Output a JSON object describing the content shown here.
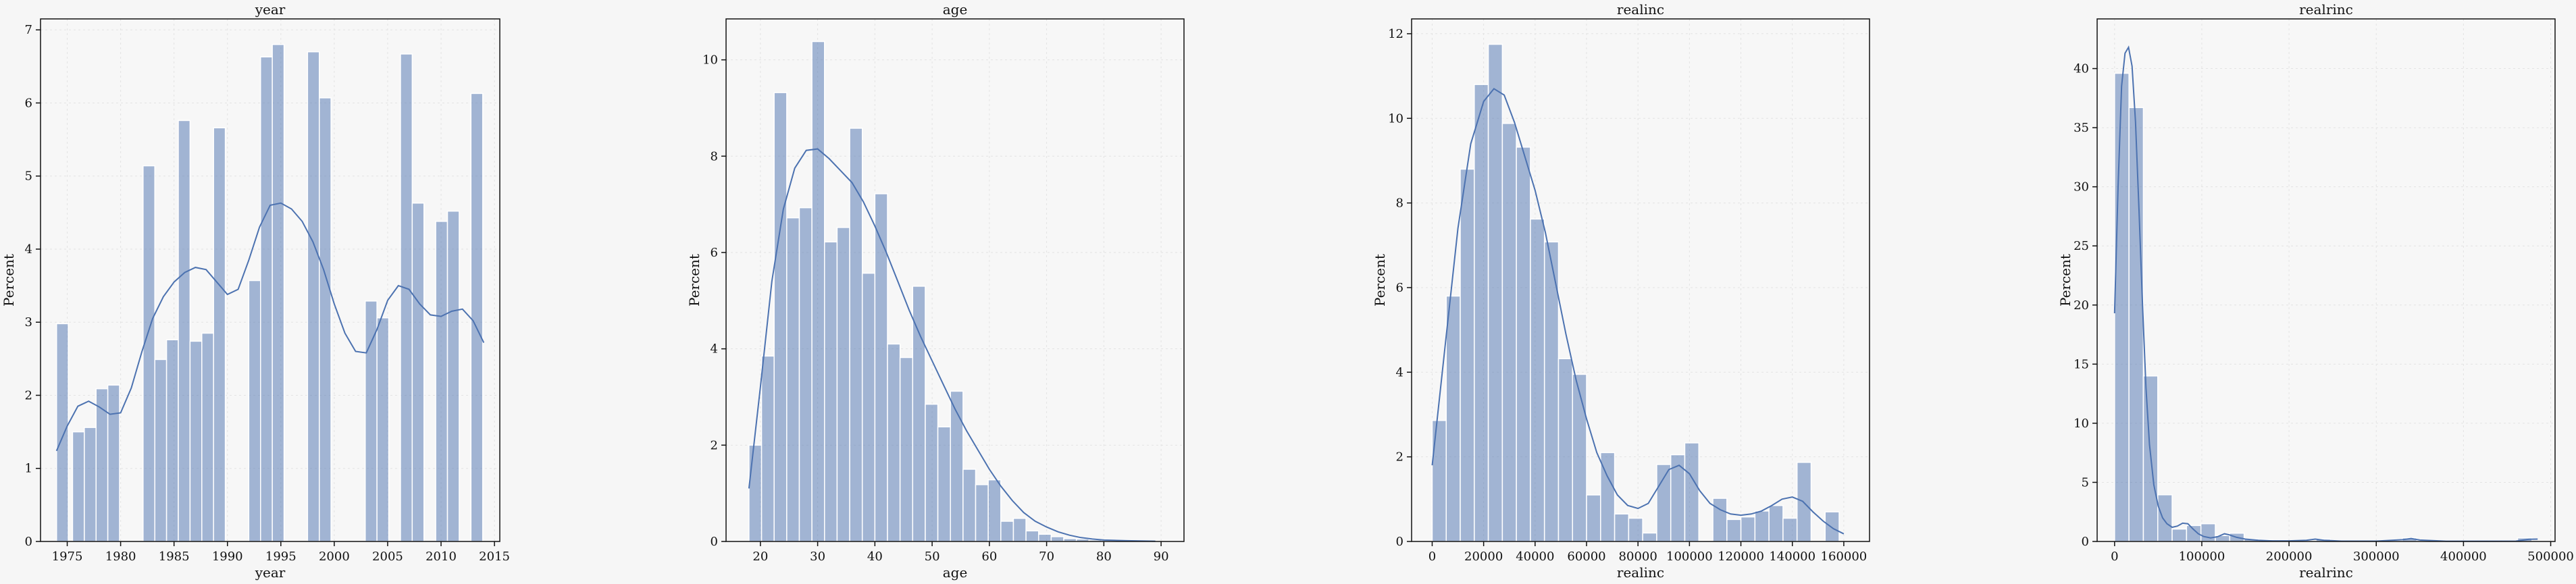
{
  "chart_data": [
    {
      "type": "bar",
      "title": "year",
      "xlabel": "year",
      "ylabel": "Percent",
      "xlim": [
        1972.5,
        2015.5
      ],
      "ylim": [
        0,
        7.15
      ],
      "xticks": [
        1975,
        1980,
        1985,
        1990,
        1995,
        2000,
        2005,
        2010,
        2015
      ],
      "yticks": [
        0,
        1,
        2,
        3,
        4,
        5,
        6,
        7
      ],
      "grid": true,
      "bar_color": "#4c72b0",
      "bars": [
        {
          "x0": 1974.0,
          "x1": 1975.1,
          "value": 2.98
        },
        {
          "x0": 1975.5,
          "x1": 1976.6,
          "value": 1.5
        },
        {
          "x0": 1976.6,
          "x1": 1977.7,
          "value": 1.56
        },
        {
          "x0": 1977.7,
          "x1": 1978.8,
          "value": 2.09
        },
        {
          "x0": 1978.8,
          "x1": 1979.9,
          "value": 2.14
        },
        {
          "x0": 1982.1,
          "x1": 1983.2,
          "value": 5.14
        },
        {
          "x0": 1983.2,
          "x1": 1984.3,
          "value": 2.49
        },
        {
          "x0": 1984.3,
          "x1": 1985.4,
          "value": 2.76
        },
        {
          "x0": 1985.4,
          "x1": 1986.5,
          "value": 5.76
        },
        {
          "x0": 1986.5,
          "x1": 1987.6,
          "value": 2.74
        },
        {
          "x0": 1987.6,
          "x1": 1988.7,
          "value": 2.85
        },
        {
          "x0": 1988.7,
          "x1": 1989.8,
          "value": 5.66
        },
        {
          "x0": 1992.0,
          "x1": 1993.1,
          "value": 3.57
        },
        {
          "x0": 1993.1,
          "x1": 1994.2,
          "value": 6.63
        },
        {
          "x0": 1994.2,
          "x1": 1995.3,
          "value": 6.8
        },
        {
          "x0": 1997.5,
          "x1": 1998.6,
          "value": 6.7
        },
        {
          "x0": 1998.6,
          "x1": 1999.7,
          "value": 6.07
        },
        {
          "x0": 2002.9,
          "x1": 2004.0,
          "value": 3.29
        },
        {
          "x0": 2004.0,
          "x1": 2005.1,
          "value": 3.06
        },
        {
          "x0": 2006.2,
          "x1": 2007.3,
          "value": 6.67
        },
        {
          "x0": 2007.3,
          "x1": 2008.4,
          "value": 4.63
        },
        {
          "x0": 2009.5,
          "x1": 2010.6,
          "value": 4.38
        },
        {
          "x0": 2010.6,
          "x1": 2011.7,
          "value": 4.52
        },
        {
          "x0": 2012.8,
          "x1": 2013.9,
          "value": 6.13
        }
      ],
      "kde": [
        [
          1974.0,
          1.24
        ],
        [
          1975.0,
          1.58
        ],
        [
          1976.0,
          1.85
        ],
        [
          1977.0,
          1.92
        ],
        [
          1978.0,
          1.84
        ],
        [
          1979.0,
          1.74
        ],
        [
          1980.0,
          1.76
        ],
        [
          1981.0,
          2.1
        ],
        [
          1982.0,
          2.6
        ],
        [
          1983.0,
          3.05
        ],
        [
          1984.0,
          3.35
        ],
        [
          1985.0,
          3.55
        ],
        [
          1986.0,
          3.68
        ],
        [
          1987.0,
          3.75
        ],
        [
          1988.0,
          3.72
        ],
        [
          1989.0,
          3.55
        ],
        [
          1990.0,
          3.38
        ],
        [
          1991.0,
          3.45
        ],
        [
          1992.0,
          3.85
        ],
        [
          1993.0,
          4.3
        ],
        [
          1994.0,
          4.6
        ],
        [
          1995.0,
          4.63
        ],
        [
          1996.0,
          4.55
        ],
        [
          1997.0,
          4.38
        ],
        [
          1998.0,
          4.1
        ],
        [
          1999.0,
          3.72
        ],
        [
          2000.0,
          3.25
        ],
        [
          2001.0,
          2.85
        ],
        [
          2002.0,
          2.6
        ],
        [
          2003.0,
          2.58
        ],
        [
          2004.0,
          2.9
        ],
        [
          2005.0,
          3.3
        ],
        [
          2006.0,
          3.5
        ],
        [
          2007.0,
          3.45
        ],
        [
          2008.0,
          3.25
        ],
        [
          2009.0,
          3.1
        ],
        [
          2010.0,
          3.08
        ],
        [
          2011.0,
          3.15
        ],
        [
          2012.0,
          3.18
        ],
        [
          2013.0,
          3.02
        ],
        [
          2014.0,
          2.72
        ]
      ]
    },
    {
      "type": "bar",
      "title": "age",
      "xlabel": "age",
      "ylabel": "Percent",
      "xlim": [
        14,
        94
      ],
      "ylim": [
        0,
        10.85
      ],
      "xticks": [
        20,
        30,
        40,
        50,
        60,
        70,
        80,
        90
      ],
      "yticks": [
        0,
        2,
        4,
        6,
        8,
        10
      ],
      "grid": true,
      "bar_color": "#4c72b0",
      "bin_start": 18,
      "bin_width": 2.2,
      "values": [
        2.0,
        3.85,
        9.32,
        6.72,
        6.93,
        10.38,
        6.22,
        6.52,
        8.58,
        5.57,
        7.22,
        4.1,
        3.82,
        5.3,
        2.85,
        2.38,
        3.12,
        1.5,
        1.18,
        1.28,
        0.42,
        0.48,
        0.22,
        0.15,
        0.1,
        0.06,
        0.05,
        0.03,
        0.02,
        0.01
      ],
      "kde": [
        [
          18,
          1.1
        ],
        [
          20,
          3.2
        ],
        [
          22,
          5.4
        ],
        [
          24,
          6.9
        ],
        [
          26,
          7.75
        ],
        [
          28,
          8.12
        ],
        [
          30,
          8.15
        ],
        [
          32,
          7.95
        ],
        [
          34,
          7.7
        ],
        [
          36,
          7.45
        ],
        [
          38,
          7.05
        ],
        [
          40,
          6.55
        ],
        [
          42,
          6.0
        ],
        [
          44,
          5.4
        ],
        [
          46,
          4.8
        ],
        [
          48,
          4.25
        ],
        [
          50,
          3.75
        ],
        [
          52,
          3.25
        ],
        [
          54,
          2.75
        ],
        [
          56,
          2.3
        ],
        [
          58,
          1.9
        ],
        [
          60,
          1.5
        ],
        [
          62,
          1.15
        ],
        [
          64,
          0.85
        ],
        [
          66,
          0.6
        ],
        [
          68,
          0.42
        ],
        [
          70,
          0.3
        ],
        [
          72,
          0.2
        ],
        [
          74,
          0.13
        ],
        [
          76,
          0.08
        ],
        [
          78,
          0.05
        ],
        [
          80,
          0.03
        ],
        [
          84,
          0.015
        ],
        [
          89,
          0.005
        ]
      ]
    },
    {
      "type": "bar",
      "title": "realinc",
      "xlabel": "realinc",
      "ylabel": "Percent",
      "xlim": [
        -8000,
        170000
      ],
      "ylim": [
        0,
        12.35
      ],
      "xticks": [
        0,
        20000,
        40000,
        60000,
        80000,
        100000,
        120000,
        140000,
        160000
      ],
      "yticks": [
        0,
        2,
        4,
        6,
        8,
        10,
        12
      ],
      "grid": true,
      "bar_color": "#4c72b0",
      "bin_start": 0,
      "bin_width": 5455,
      "values": [
        2.86,
        5.8,
        8.8,
        10.8,
        11.75,
        9.88,
        9.32,
        7.62,
        7.08,
        4.32,
        3.95,
        1.1,
        2.1,
        0.65,
        0.55,
        0.2,
        1.82,
        2.05,
        2.33,
        0.02,
        1.02,
        0.52,
        0.58,
        0.72,
        0.85,
        0.55,
        1.87,
        0.01,
        0.7
      ],
      "kde": [
        [
          0,
          1.8
        ],
        [
          5000,
          4.6
        ],
        [
          10000,
          7.4
        ],
        [
          15000,
          9.4
        ],
        [
          20000,
          10.4
        ],
        [
          24000,
          10.7
        ],
        [
          28000,
          10.55
        ],
        [
          32000,
          9.9
        ],
        [
          36000,
          9.1
        ],
        [
          40000,
          8.3
        ],
        [
          44000,
          7.3
        ],
        [
          48000,
          6.1
        ],
        [
          52000,
          4.9
        ],
        [
          56000,
          3.8
        ],
        [
          60000,
          2.9
        ],
        [
          64000,
          2.1
        ],
        [
          68000,
          1.55
        ],
        [
          72000,
          1.1
        ],
        [
          76000,
          0.85
        ],
        [
          80000,
          0.78
        ],
        [
          84000,
          0.9
        ],
        [
          88000,
          1.3
        ],
        [
          92000,
          1.7
        ],
        [
          96000,
          1.8
        ],
        [
          100000,
          1.6
        ],
        [
          104000,
          1.2
        ],
        [
          108000,
          0.9
        ],
        [
          112000,
          0.75
        ],
        [
          116000,
          0.65
        ],
        [
          120000,
          0.62
        ],
        [
          124000,
          0.65
        ],
        [
          128000,
          0.72
        ],
        [
          132000,
          0.85
        ],
        [
          136000,
          1.0
        ],
        [
          140000,
          1.05
        ],
        [
          144000,
          0.95
        ],
        [
          148000,
          0.7
        ],
        [
          152000,
          0.48
        ],
        [
          156000,
          0.3
        ],
        [
          160000,
          0.18
        ]
      ]
    },
    {
      "type": "bar",
      "title": "realrinc",
      "xlabel": "realrinc",
      "ylabel": "Percent",
      "xlim": [
        -20000,
        505000
      ],
      "ylim": [
        0,
        44.2
      ],
      "xticks": [
        0,
        100000,
        200000,
        300000,
        400000,
        500000
      ],
      "yticks": [
        0,
        5,
        10,
        15,
        20,
        25,
        30,
        35,
        40
      ],
      "grid": true,
      "bar_color": "#4c72b0",
      "bin_start": 0,
      "bin_width": 16500,
      "values": [
        39.6,
        36.7,
        14.0,
        3.95,
        1.05,
        1.35,
        1.5,
        0.5,
        0.7,
        0.2,
        0.15,
        0.1,
        0.05,
        0.05,
        0.2,
        0.05,
        0.05,
        0.05,
        0.05,
        0.05,
        0.3,
        0.05,
        0.05,
        0.05,
        0.05,
        0.05,
        0.05,
        0.05,
        0.3
      ],
      "kde": [
        [
          0,
          19.3
        ],
        [
          4000,
          30.0
        ],
        [
          8000,
          38.5
        ],
        [
          12000,
          41.3
        ],
        [
          16000,
          41.8
        ],
        [
          20000,
          40.2
        ],
        [
          24000,
          35.5
        ],
        [
          28000,
          28.0
        ],
        [
          32000,
          20.0
        ],
        [
          36000,
          13.0
        ],
        [
          40000,
          8.2
        ],
        [
          45000,
          4.8
        ],
        [
          50000,
          3.0
        ],
        [
          55000,
          2.0
        ],
        [
          60000,
          1.5
        ],
        [
          66000,
          1.2
        ],
        [
          72000,
          1.3
        ],
        [
          78000,
          1.55
        ],
        [
          84000,
          1.5
        ],
        [
          90000,
          1.05
        ],
        [
          96000,
          0.65
        ],
        [
          102000,
          0.42
        ],
        [
          110000,
          0.3
        ],
        [
          118000,
          0.4
        ],
        [
          126000,
          0.65
        ],
        [
          132000,
          0.55
        ],
        [
          140000,
          0.35
        ],
        [
          150000,
          0.2
        ],
        [
          165000,
          0.1
        ],
        [
          180000,
          0.05
        ],
        [
          200000,
          0.05
        ],
        [
          220000,
          0.1
        ],
        [
          230000,
          0.2
        ],
        [
          240000,
          0.1
        ],
        [
          260000,
          0.03
        ],
        [
          300000,
          0.03
        ],
        [
          330000,
          0.15
        ],
        [
          340000,
          0.25
        ],
        [
          350000,
          0.12
        ],
        [
          380000,
          0.02
        ],
        [
          420000,
          0.02
        ],
        [
          460000,
          0.03
        ],
        [
          475000,
          0.18
        ],
        [
          485000,
          0.2
        ]
      ]
    }
  ]
}
